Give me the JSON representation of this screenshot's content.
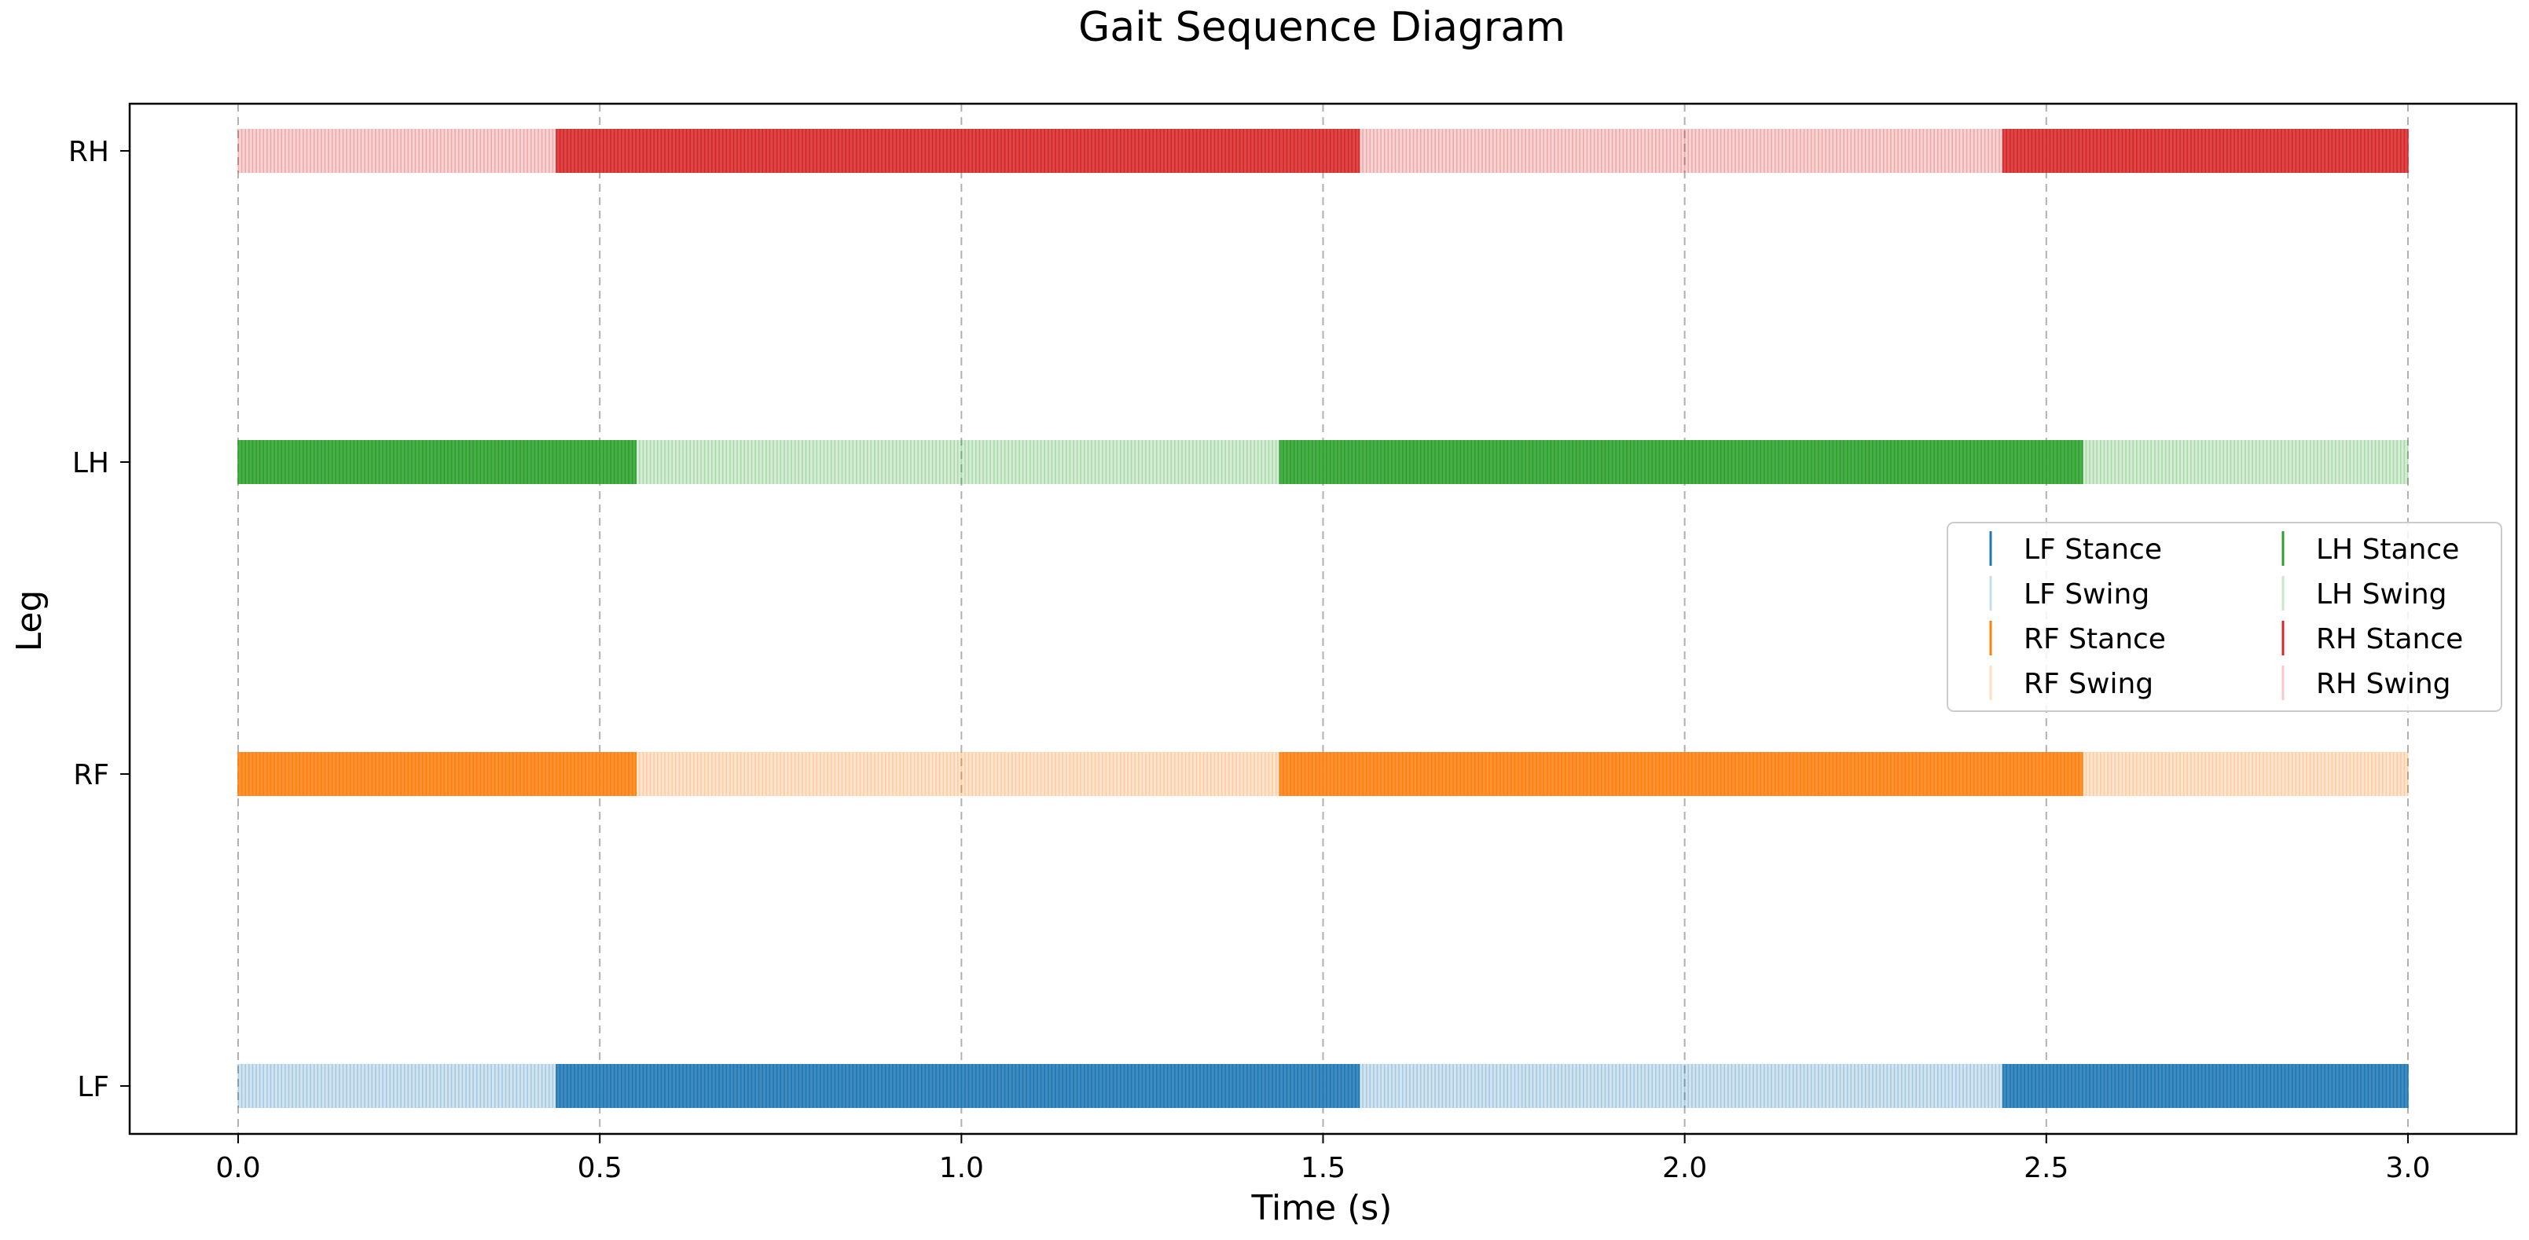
{
  "chart_data": {
    "type": "broken_barh",
    "title": "Gait Sequence Diagram",
    "xlabel": "Time (s)",
    "ylabel": "Leg",
    "xlim": [
      -0.15,
      3.15
    ],
    "xticks": [
      0.0,
      0.5,
      1.0,
      1.5,
      2.0,
      2.5,
      3.0
    ],
    "xtick_labels": [
      "0.0",
      "0.5",
      "1.0",
      "1.5",
      "2.0",
      "2.5",
      "3.0"
    ],
    "legs": [
      "LF",
      "RF",
      "LH",
      "RH"
    ],
    "grid": "vertical dashed",
    "legend_placement": "center-right",
    "series": [
      {
        "leg": "LF",
        "color": "#1f77b4",
        "stance_label": "LF Stance",
        "swing_label": "LF Swing",
        "stance": [
          [
            0.44,
            1.55
          ],
          [
            2.44,
            3.0
          ]
        ],
        "swing": [
          [
            0.0,
            0.44
          ],
          [
            1.55,
            2.44
          ]
        ]
      },
      {
        "leg": "RF",
        "color": "#ff7f0e",
        "stance_label": "RF Stance",
        "swing_label": "RF Swing",
        "stance": [
          [
            0.0,
            0.55
          ],
          [
            1.44,
            2.55
          ]
        ],
        "swing": [
          [
            0.55,
            1.44
          ],
          [
            2.55,
            3.0
          ]
        ]
      },
      {
        "leg": "LH",
        "color": "#2ca02c",
        "stance_label": "LH Stance",
        "swing_label": "LH Swing",
        "stance": [
          [
            0.0,
            0.55
          ],
          [
            1.44,
            2.55
          ]
        ],
        "swing": [
          [
            0.55,
            1.44
          ],
          [
            2.55,
            3.0
          ]
        ]
      },
      {
        "leg": "RH",
        "color": "#d62728",
        "stance_label": "RH Stance",
        "swing_label": "RH Swing",
        "stance": [
          [
            0.44,
            1.55
          ],
          [
            2.44,
            3.0
          ]
        ],
        "swing": [
          [
            0.0,
            0.44
          ],
          [
            1.55,
            2.44
          ]
        ]
      }
    ],
    "legend_order": [
      "LF Stance",
      "LF Swing",
      "RF Stance",
      "RF Swing",
      "LH Stance",
      "LH Swing",
      "RH Stance",
      "RH Swing"
    ]
  }
}
